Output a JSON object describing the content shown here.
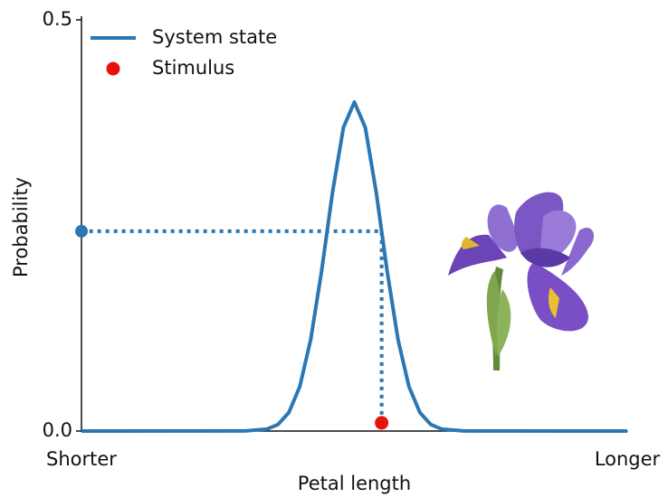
{
  "chart_data": {
    "type": "line",
    "xlabel": "Petal length",
    "ylabel": "Probability",
    "xlim": [
      0,
      1
    ],
    "ylim": [
      0,
      0.5
    ],
    "xticks": [
      {
        "value": 0,
        "label": "Shorter"
      },
      {
        "value": 1,
        "label": "Longer"
      }
    ],
    "yticks": [
      {
        "value": 0,
        "label": "0.0"
      },
      0.5
    ],
    "legend": "upper left",
    "series": [
      {
        "name": "System state",
        "type": "line",
        "color": "#2a77b4",
        "x": [
          0,
          0.3,
          0.34,
          0.36,
          0.38,
          0.4,
          0.42,
          0.44,
          0.46,
          0.48,
          0.5,
          0.52,
          0.54,
          0.56,
          0.58,
          0.6,
          0.62,
          0.64,
          0.66,
          0.7,
          1
        ],
        "values": [
          0,
          0.0001,
          0.0024,
          0.0079,
          0.0225,
          0.0541,
          0.1112,
          0.1947,
          0.2905,
          0.3692,
          0.4,
          0.3692,
          0.2905,
          0.1947,
          0.1112,
          0.0541,
          0.0225,
          0.0079,
          0.0024,
          0.0001,
          0
        ]
      },
      {
        "name": "Stimulus",
        "type": "scatter",
        "color": "#e8120c",
        "x": [
          0.55
        ],
        "values": [
          0.01
        ]
      }
    ],
    "readout": {
      "color": "#2a77b4",
      "x": [
        0.55,
        0.55,
        0
      ],
      "values": [
        0.01,
        0.243,
        0.243
      ]
    }
  }
}
